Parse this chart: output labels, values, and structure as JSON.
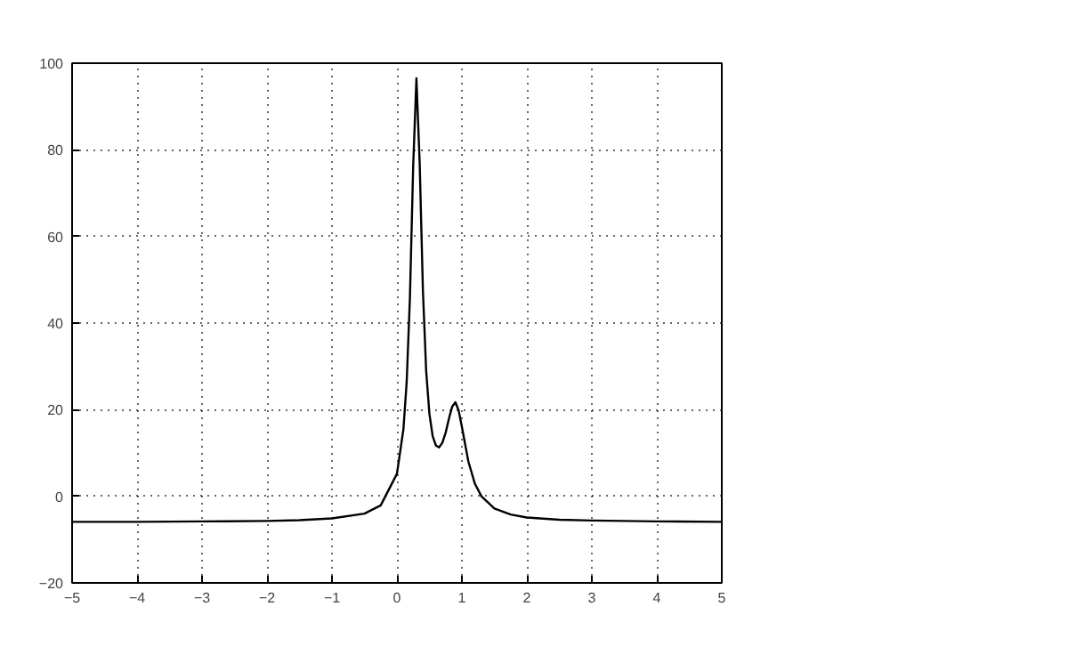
{
  "chart_data": {
    "type": "line",
    "x": [
      -5,
      -4,
      -3,
      -2,
      -1.5,
      -1,
      -0.5,
      -0.25,
      0,
      0.1,
      0.15,
      0.2,
      0.25,
      0.3,
      0.35,
      0.4,
      0.45,
      0.5,
      0.55,
      0.6,
      0.65,
      0.7,
      0.75,
      0.8,
      0.85,
      0.9,
      0.95,
      1.0,
      1.1,
      1.2,
      1.3,
      1.5,
      1.75,
      2,
      2.5,
      3,
      4,
      5
    ],
    "series": [
      {
        "color": "#000000",
        "values": [
          -5.9,
          -5.9,
          -5.8,
          -5.7,
          -5.5,
          -5.1,
          -4.0,
          -2.1,
          5.2,
          15.5,
          26.4,
          45.9,
          76.2,
          96.5,
          76.9,
          47.5,
          28.9,
          19.0,
          13.9,
          11.7,
          11.3,
          12.4,
          14.7,
          17.9,
          20.7,
          21.7,
          19.8,
          16.0,
          8.0,
          2.9,
          0.0,
          -2.8,
          -4.2,
          -4.9,
          -5.4,
          -5.6,
          -5.8,
          -5.9
        ]
      }
    ],
    "xlim": [
      -5,
      5
    ],
    "ylim": [
      -20,
      100
    ],
    "xticks": [
      -5,
      -4,
      -3,
      -2,
      -1,
      0,
      1,
      2,
      3,
      4,
      5
    ],
    "yticks": [
      -20,
      0,
      20,
      40,
      60,
      80,
      100
    ],
    "grid": true,
    "line_style": "solid",
    "marker": "none"
  }
}
